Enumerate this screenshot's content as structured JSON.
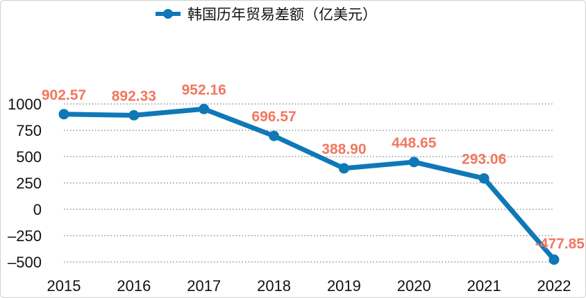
{
  "chart_data": {
    "type": "line",
    "title": "",
    "xlabel": "",
    "ylabel": "",
    "legend": {
      "position": "top",
      "label": "韩国历年贸易差额（亿美元）"
    },
    "categories": [
      "2015",
      "2016",
      "2017",
      "2018",
      "2019",
      "2020",
      "2021",
      "2022"
    ],
    "series": [
      {
        "name": "韩国历年贸易差额（亿美元）",
        "values": [
          902.57,
          892.33,
          952.16,
          696.57,
          388.9,
          448.65,
          293.06,
          -477.85
        ],
        "value_labels": [
          "902.57",
          "892.33",
          "952.16",
          "696.57",
          "388.90",
          "448.65",
          "293.06",
          "-477.85"
        ],
        "color": "#0f78b7"
      }
    ],
    "ylim": [
      -500,
      1000
    ],
    "yticks": [
      1000,
      750,
      500,
      250,
      0,
      -250,
      -500
    ],
    "ytick_labels": [
      "1000",
      "750",
      "500",
      "250",
      "0",
      "–250",
      "–500"
    ],
    "grid": "horizontal dotted",
    "label_color": "#f07860"
  }
}
